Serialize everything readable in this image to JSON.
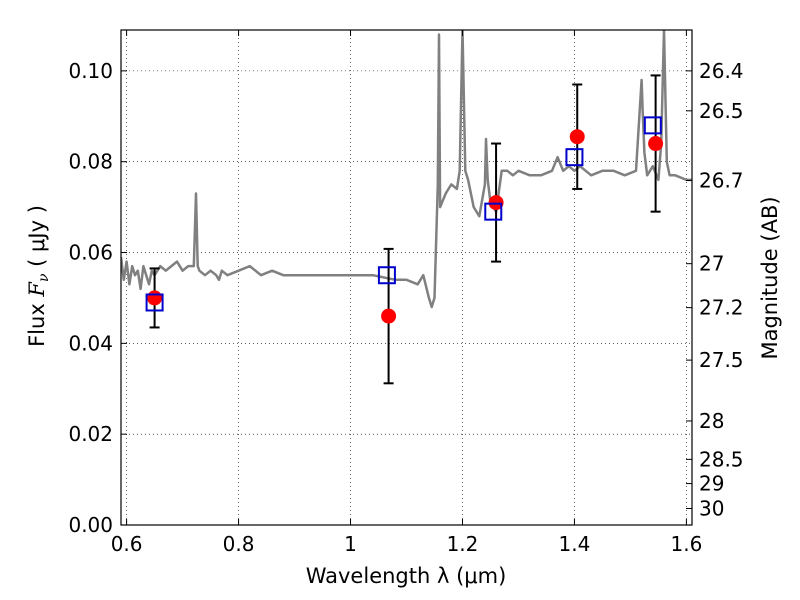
{
  "chart_data": {
    "type": "scatter",
    "xlabel": "Wavelength  λ (μm)",
    "ylabel_prefix": "Flux  ",
    "ylabel_symbol": "F",
    "ylabel_subscript": "ν",
    "ylabel_unit": "  ( μJy )",
    "y2label": "Magnitude (AB)",
    "xlim": [
      0.59,
      1.61
    ],
    "ylim": [
      0.0,
      0.109
    ],
    "x_ticks": [
      0.6,
      0.8,
      1.0,
      1.2,
      1.4,
      1.6
    ],
    "x_tick_labels": [
      "0.6",
      "0.8",
      "1",
      "1.2",
      "1.4",
      "1.6"
    ],
    "y_ticks": [
      0.0,
      0.02,
      0.04,
      0.06,
      0.08,
      0.1
    ],
    "y_tick_labels": [
      "0.00",
      "0.02",
      "0.04",
      "0.06",
      "0.08",
      "0.10"
    ],
    "mag_ticks": [
      26.4,
      26.5,
      26.7,
      27,
      27.2,
      27.5,
      28,
      28.5,
      29,
      30
    ],
    "mag_tick_labels": [
      "26.4",
      "26.5",
      "26.7",
      "27",
      "27.2",
      "27.5",
      "28",
      "28.5",
      "29",
      "30"
    ],
    "grid": true,
    "series": [
      {
        "kind": "line",
        "color": "#808080",
        "x": [
          0.59,
          0.595,
          0.6,
          0.605,
          0.61,
          0.615,
          0.62,
          0.625,
          0.63,
          0.635,
          0.64,
          0.645,
          0.65,
          0.66,
          0.67,
          0.68,
          0.69,
          0.7,
          0.71,
          0.72,
          0.724,
          0.727,
          0.73,
          0.74,
          0.75,
          0.76,
          0.765,
          0.77,
          0.78,
          0.8,
          0.82,
          0.84,
          0.86,
          0.88,
          0.9,
          0.92,
          0.95,
          1.0,
          1.04,
          1.08,
          1.1,
          1.12,
          1.13,
          1.14,
          1.145,
          1.15,
          1.156,
          1.158,
          1.16,
          1.17,
          1.18,
          1.19,
          1.195,
          1.2,
          1.205,
          1.21,
          1.22,
          1.23,
          1.24,
          1.242,
          1.245,
          1.25,
          1.26,
          1.27,
          1.28,
          1.29,
          1.3,
          1.32,
          1.34,
          1.36,
          1.37,
          1.38,
          1.39,
          1.4,
          1.41,
          1.43,
          1.45,
          1.47,
          1.49,
          1.51,
          1.515,
          1.52,
          1.522,
          1.525,
          1.53,
          1.54,
          1.55,
          1.555,
          1.56,
          1.565,
          1.57,
          1.58,
          1.6,
          1.61
        ],
        "y": [
          0.059,
          0.054,
          0.058,
          0.053,
          0.057,
          0.055,
          0.056,
          0.052,
          0.057,
          0.055,
          0.053,
          0.056,
          0.055,
          0.057,
          0.056,
          0.057,
          0.058,
          0.056,
          0.057,
          0.057,
          0.073,
          0.057,
          0.056,
          0.055,
          0.056,
          0.055,
          0.054,
          0.056,
          0.055,
          0.056,
          0.057,
          0.055,
          0.056,
          0.055,
          0.055,
          0.055,
          0.055,
          0.055,
          0.055,
          0.054,
          0.054,
          0.053,
          0.055,
          0.05,
          0.048,
          0.05,
          0.075,
          0.108,
          0.07,
          0.073,
          0.075,
          0.074,
          0.078,
          0.109,
          0.078,
          0.076,
          0.07,
          0.068,
          0.075,
          0.085,
          0.076,
          0.071,
          0.069,
          0.078,
          0.078,
          0.077,
          0.078,
          0.077,
          0.077,
          0.078,
          0.081,
          0.078,
          0.079,
          0.078,
          0.079,
          0.077,
          0.078,
          0.078,
          0.077,
          0.078,
          0.088,
          0.098,
          0.091,
          0.082,
          0.077,
          0.079,
          0.076,
          0.084,
          0.109,
          0.08,
          0.077,
          0.077,
          0.076,
          0.076
        ]
      },
      {
        "kind": "errorbar_points",
        "color": "#ff0000",
        "x": [
          0.65,
          1.068,
          1.26,
          1.405,
          1.545
        ],
        "y": [
          0.05,
          0.046,
          0.071,
          0.0855,
          0.084
        ],
        "err_low": [
          0.0065,
          0.0148,
          0.013,
          0.0115,
          0.015
        ],
        "err_high": [
          0.0065,
          0.0148,
          0.013,
          0.0115,
          0.015
        ]
      },
      {
        "kind": "square_markers",
        "color": "#0000cc",
        "x": [
          0.65,
          1.065,
          1.255,
          1.4,
          1.54
        ],
        "y": [
          0.049,
          0.055,
          0.069,
          0.081,
          0.088
        ]
      }
    ]
  }
}
